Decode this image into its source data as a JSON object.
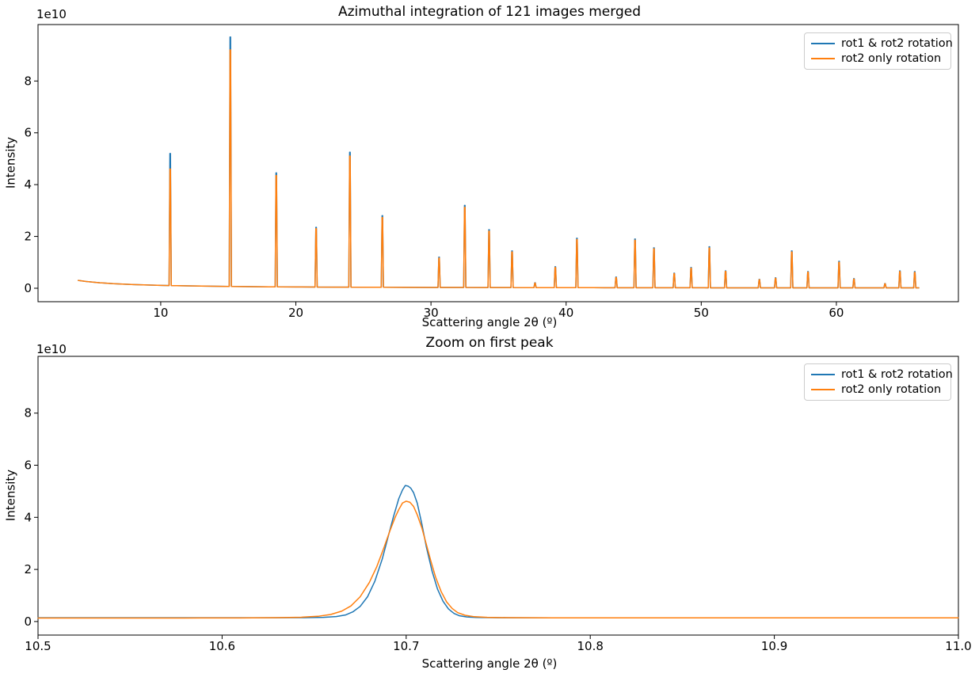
{
  "figure": {
    "background": "#ffffff"
  },
  "chart_data": [
    {
      "type": "line",
      "title": "Azimuthal integration of 121 images merged",
      "xlabel": "Scattering angle 2θ (º)",
      "ylabel": "Intensity",
      "offset_text": "1e10",
      "xlim": [
        0.92,
        69.03
      ],
      "ylim_e10": [
        -0.52,
        10.18
      ],
      "xticks": [
        10,
        20,
        30,
        40,
        50,
        60
      ],
      "xtick_labels": [
        "10",
        "20",
        "30",
        "40",
        "50",
        "60"
      ],
      "yticks_e10": [
        0,
        2,
        4,
        6,
        8
      ],
      "ytick_labels": [
        "0",
        "2",
        "4",
        "6",
        "8"
      ],
      "grid": false,
      "legend_position": "upper right",
      "series": [
        {
          "name": "rot1 & rot2 rotation",
          "color": "#1f77b4"
        },
        {
          "name": "rot2 only rotation",
          "color": "#ff7f0e"
        }
      ],
      "spectrum": {
        "x_start": 3.9,
        "x_end": 66.1,
        "peak_halfwidth_deg": 0.08,
        "peak_topwidth_deg": 0.02,
        "baseline_e10": [
          [
            3.9,
            0.3
          ],
          [
            4.5,
            0.26
          ],
          [
            5.5,
            0.21
          ],
          [
            6.5,
            0.175
          ],
          [
            8,
            0.14
          ],
          [
            10,
            0.11
          ],
          [
            12,
            0.09
          ],
          [
            14,
            0.075
          ],
          [
            16,
            0.063
          ],
          [
            18,
            0.055
          ],
          [
            20,
            0.05
          ],
          [
            23,
            0.043
          ],
          [
            26,
            0.038
          ],
          [
            30,
            0.032
          ],
          [
            34,
            0.027
          ],
          [
            38,
            0.024
          ],
          [
            42,
            0.021
          ],
          [
            46,
            0.019
          ],
          [
            50,
            0.017
          ],
          [
            55,
            0.016
          ],
          [
            60,
            0.015
          ],
          [
            66.1,
            0.014
          ]
        ],
        "peaks_deg_h1_h2_e10": [
          [
            10.7,
            5.2,
            4.6
          ],
          [
            15.15,
            9.7,
            9.2
          ],
          [
            18.55,
            4.45,
            4.35
          ],
          [
            21.5,
            2.35,
            2.3
          ],
          [
            24.0,
            5.25,
            5.1
          ],
          [
            26.4,
            2.8,
            2.73
          ],
          [
            30.6,
            1.2,
            1.16
          ],
          [
            32.5,
            3.2,
            3.12
          ],
          [
            34.3,
            2.26,
            2.2
          ],
          [
            36.0,
            1.44,
            1.4
          ],
          [
            37.7,
            0.21,
            0.2
          ],
          [
            39.2,
            0.83,
            0.8
          ],
          [
            40.8,
            1.93,
            1.88
          ],
          [
            43.7,
            0.43,
            0.41
          ],
          [
            45.1,
            1.9,
            1.85
          ],
          [
            46.5,
            1.56,
            1.52
          ],
          [
            48.0,
            0.58,
            0.56
          ],
          [
            49.25,
            0.8,
            0.77
          ],
          [
            50.6,
            1.6,
            1.55
          ],
          [
            51.8,
            0.67,
            0.65
          ],
          [
            54.3,
            0.34,
            0.33
          ],
          [
            55.5,
            0.4,
            0.38
          ],
          [
            56.7,
            1.44,
            1.4
          ],
          [
            57.9,
            0.64,
            0.62
          ],
          [
            60.2,
            1.04,
            1.0
          ],
          [
            61.3,
            0.37,
            0.35
          ],
          [
            63.6,
            0.18,
            0.17
          ],
          [
            64.7,
            0.67,
            0.64
          ],
          [
            65.8,
            0.64,
            0.61
          ]
        ]
      }
    },
    {
      "type": "line",
      "title": "Zoom on first peak",
      "xlabel": "Scattering angle 2θ (º)",
      "ylabel": "Intensity",
      "offset_text": "1e10",
      "xlim": [
        10.5,
        11.0
      ],
      "ylim_e10": [
        -0.52,
        10.18
      ],
      "xticks": [
        10.5,
        10.6,
        10.7,
        10.8,
        10.9,
        11.0
      ],
      "xtick_labels": [
        "10.5",
        "10.6",
        "10.7",
        "10.8",
        "10.9",
        "11.0"
      ],
      "yticks_e10": [
        0,
        2,
        4,
        6,
        8
      ],
      "ytick_labels": [
        "0",
        "2",
        "4",
        "6",
        "8"
      ],
      "grid": false,
      "legend_position": "upper right",
      "series": [
        {
          "name": "rot1 & rot2 rotation",
          "color": "#1f77b4",
          "points_e10": [
            [
              10.5,
              0.145
            ],
            [
              10.6,
              0.145
            ],
            [
              10.63,
              0.145
            ],
            [
              10.645,
              0.15
            ],
            [
              10.655,
              0.16
            ],
            [
              10.662,
              0.19
            ],
            [
              10.667,
              0.25
            ],
            [
              10.671,
              0.37
            ],
            [
              10.675,
              0.58
            ],
            [
              10.679,
              0.95
            ],
            [
              10.683,
              1.55
            ],
            [
              10.687,
              2.4
            ],
            [
              10.69,
              3.2
            ],
            [
              10.693,
              4.0
            ],
            [
              10.696,
              4.72
            ],
            [
              10.698,
              5.05
            ],
            [
              10.6995,
              5.22
            ],
            [
              10.701,
              5.2
            ],
            [
              10.7025,
              5.12
            ],
            [
              10.704,
              4.95
            ],
            [
              10.706,
              4.55
            ],
            [
              10.7085,
              3.75
            ],
            [
              10.711,
              2.85
            ],
            [
              10.714,
              1.95
            ],
            [
              10.717,
              1.25
            ],
            [
              10.72,
              0.78
            ],
            [
              10.723,
              0.48
            ],
            [
              10.726,
              0.31
            ],
            [
              10.729,
              0.22
            ],
            [
              10.733,
              0.175
            ],
            [
              10.738,
              0.155
            ],
            [
              10.75,
              0.145
            ],
            [
              10.78,
              0.143
            ],
            [
              10.9,
              0.142
            ],
            [
              11.0,
              0.142
            ]
          ]
        },
        {
          "name": "rot2 only rotation",
          "color": "#ff7f0e",
          "points_e10": [
            [
              10.5,
              0.135
            ],
            [
              10.58,
              0.135
            ],
            [
              10.61,
              0.138
            ],
            [
              10.63,
              0.148
            ],
            [
              10.643,
              0.165
            ],
            [
              10.652,
              0.2
            ],
            [
              10.659,
              0.27
            ],
            [
              10.665,
              0.4
            ],
            [
              10.67,
              0.6
            ],
            [
              10.675,
              0.95
            ],
            [
              10.68,
              1.5
            ],
            [
              10.684,
              2.1
            ],
            [
              10.688,
              2.85
            ],
            [
              10.691,
              3.45
            ],
            [
              10.694,
              4.0
            ],
            [
              10.696,
              4.3
            ],
            [
              10.698,
              4.55
            ],
            [
              10.7,
              4.62
            ],
            [
              10.702,
              4.58
            ],
            [
              10.704,
              4.42
            ],
            [
              10.706,
              4.1
            ],
            [
              10.7085,
              3.6
            ],
            [
              10.711,
              2.95
            ],
            [
              10.7135,
              2.3
            ],
            [
              10.716,
              1.7
            ],
            [
              10.719,
              1.15
            ],
            [
              10.722,
              0.75
            ],
            [
              10.725,
              0.5
            ],
            [
              10.728,
              0.34
            ],
            [
              10.732,
              0.24
            ],
            [
              10.737,
              0.185
            ],
            [
              10.744,
              0.16
            ],
            [
              10.755,
              0.148
            ],
            [
              10.78,
              0.143
            ],
            [
              10.9,
              0.142
            ],
            [
              11.0,
              0.142
            ]
          ]
        }
      ]
    }
  ]
}
